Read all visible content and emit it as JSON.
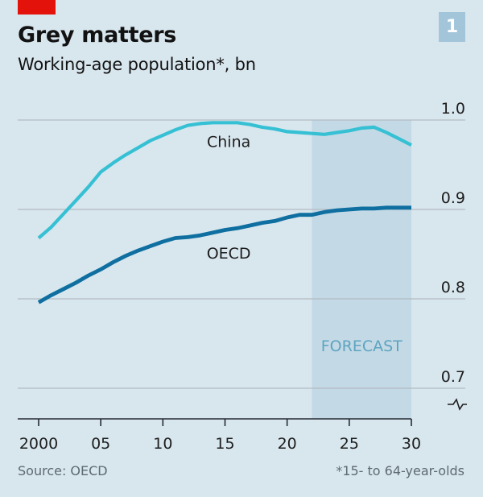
{
  "header": {
    "title": "Grey matters",
    "subtitle": "Working-age population*, bn",
    "chart_number": "1",
    "tag_color": "#e3120b",
    "number_box_color": "#a3c5da"
  },
  "footer": {
    "source": "Source: OECD",
    "footnote": "*15- to 64-year-olds"
  },
  "colors": {
    "background": "#d8e6ee",
    "forecast_band": "#c3d9e5",
    "gridline": "#b3bcc2",
    "axis": "#262a33",
    "china": "#36c0d4",
    "oecd": "#0e6fa0",
    "forecast_label": "#5ea4c0"
  },
  "chart_data": {
    "type": "line",
    "title": "Grey matters",
    "subtitle": "Working-age population*, bn",
    "xlabel": "",
    "ylabel": "bn",
    "x": [
      2000,
      2001,
      2002,
      2003,
      2004,
      2005,
      2006,
      2007,
      2008,
      2009,
      2010,
      2011,
      2012,
      2013,
      2014,
      2015,
      2016,
      2017,
      2018,
      2019,
      2020,
      2021,
      2022,
      2023,
      2024,
      2025,
      2026,
      2027,
      2028,
      2029,
      2030
    ],
    "series": [
      {
        "name": "China",
        "values": [
          0.868,
          0.88,
          0.895,
          0.91,
          0.925,
          0.942,
          0.952,
          0.961,
          0.969,
          0.977,
          0.983,
          0.989,
          0.994,
          0.996,
          0.997,
          0.997,
          0.997,
          0.995,
          0.992,
          0.99,
          0.987,
          0.986,
          0.985,
          0.984,
          0.986,
          0.988,
          0.991,
          0.992,
          0.986,
          0.979,
          0.972
        ]
      },
      {
        "name": "OECD",
        "values": [
          0.796,
          0.804,
          0.811,
          0.818,
          0.826,
          0.833,
          0.841,
          0.848,
          0.854,
          0.859,
          0.864,
          0.868,
          0.869,
          0.871,
          0.874,
          0.877,
          0.879,
          0.882,
          0.885,
          0.887,
          0.891,
          0.894,
          0.894,
          0.897,
          0.899,
          0.9,
          0.901,
          0.901,
          0.902,
          0.902,
          0.902
        ]
      }
    ],
    "xlim": [
      1998.3,
      2030
    ],
    "ylim": [
      0.666,
      1.0
    ],
    "yticks": [
      0.7,
      0.8,
      0.9,
      1.0
    ],
    "ytick_labels": [
      "0.7",
      "0.8",
      "0.9",
      "1.0"
    ],
    "xticks": [
      2000,
      2005,
      2010,
      2015,
      2020,
      2025,
      2030
    ],
    "xtick_labels": [
      "2000",
      "05",
      "10",
      "15",
      "20",
      "25",
      "30"
    ],
    "forecast": {
      "label": "FORECAST",
      "from": 2022,
      "to": 2030
    },
    "annotations": [
      {
        "text": "China",
        "series": "China",
        "x": 2015.3,
        "y": 0.97
      },
      {
        "text": "OECD",
        "series": "OECD",
        "x": 2015.3,
        "y": 0.845
      }
    ],
    "axis_break": true,
    "grid": true,
    "legend": "inline labels"
  }
}
